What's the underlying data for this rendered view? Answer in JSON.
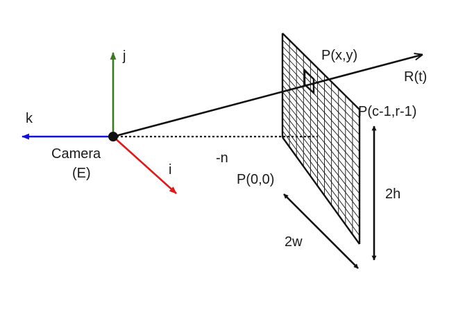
{
  "axes": {
    "j_label": "j",
    "k_label": "k",
    "i_label": "i",
    "j_color": "#3d7a1f",
    "k_color": "#1010dd",
    "i_color": "#e01818"
  },
  "camera": {
    "name": "Camera",
    "symbol": "(E)"
  },
  "ray": {
    "label": "R(t)",
    "hit_point_label": "P(x,y)"
  },
  "image_plane": {
    "distance_label": "-n",
    "origin_label": "P(0,0)",
    "corner_label": "P(c-1,r-1)",
    "width_label": "2w",
    "height_label": "2h",
    "grid_columns": 11,
    "grid_rows": 16
  }
}
